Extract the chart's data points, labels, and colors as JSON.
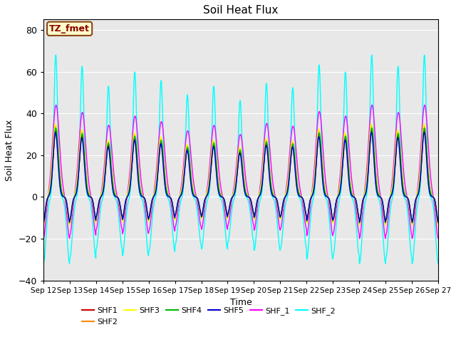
{
  "title": "Soil Heat Flux",
  "ylabel": "Soil Heat Flux",
  "xlabel": "Time",
  "ylim": [
    -40,
    85
  ],
  "annotation_text": "TZ_fmet",
  "annotation_color": "#8B0000",
  "annotation_bg": "#FFFFCC",
  "annotation_border": "#8B4513",
  "background_color": "#E8E8E8",
  "series": [
    {
      "label": "SHF1",
      "color": "#CC0000"
    },
    {
      "label": "SHF2",
      "color": "#FF8800"
    },
    {
      "label": "SHF3",
      "color": "#FFFF00"
    },
    {
      "label": "SHF4",
      "color": "#00BB00"
    },
    {
      "label": "SHF5",
      "color": "#0000CC"
    },
    {
      "label": "SHF_1",
      "color": "#FF00FF"
    },
    {
      "label": "SHF_2",
      "color": "#00FFFF"
    }
  ],
  "yticks": [
    -40,
    -20,
    0,
    20,
    40,
    60,
    80
  ],
  "xtick_labels": [
    "Sep 12",
    "Sep 13",
    "Sep 14",
    "Sep 15",
    "Sep 16",
    "Sep 17",
    "Sep 18",
    "Sep 19",
    "Sep 20",
    "Sep 21",
    "Sep 22",
    "Sep 23",
    "Sep 24",
    "Sep 25",
    "Sep 26",
    "Sep 27"
  ],
  "n_days": 15,
  "seed": 42,
  "pts_per_day": 144
}
